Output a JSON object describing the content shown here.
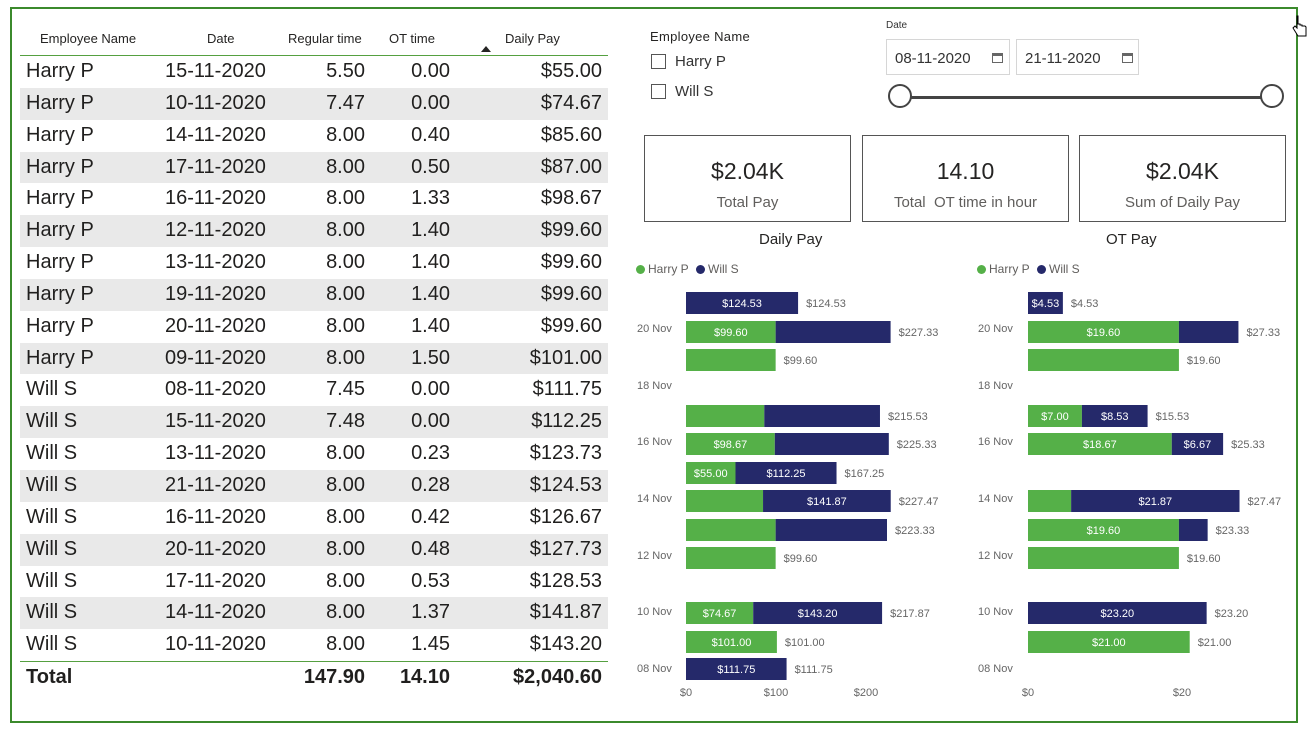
{
  "colors": {
    "harry": "#55b048",
    "will": "#25296a",
    "frame": "#3b8a2c"
  },
  "table": {
    "headers": [
      "Employee Name",
      "Date",
      "Regular time",
      "OT time",
      "Daily Pay"
    ],
    "rows": [
      [
        "Harry P",
        "15-11-2020",
        "5.50",
        "0.00",
        "$55.00"
      ],
      [
        "Harry P",
        "10-11-2020",
        "7.47",
        "0.00",
        "$74.67"
      ],
      [
        "Harry P",
        "14-11-2020",
        "8.00",
        "0.40",
        "$85.60"
      ],
      [
        "Harry P",
        "17-11-2020",
        "8.00",
        "0.50",
        "$87.00"
      ],
      [
        "Harry P",
        "16-11-2020",
        "8.00",
        "1.33",
        "$98.67"
      ],
      [
        "Harry P",
        "12-11-2020",
        "8.00",
        "1.40",
        "$99.60"
      ],
      [
        "Harry P",
        "13-11-2020",
        "8.00",
        "1.40",
        "$99.60"
      ],
      [
        "Harry P",
        "19-11-2020",
        "8.00",
        "1.40",
        "$99.60"
      ],
      [
        "Harry P",
        "20-11-2020",
        "8.00",
        "1.40",
        "$99.60"
      ],
      [
        "Harry P",
        "09-11-2020",
        "8.00",
        "1.50",
        "$101.00"
      ],
      [
        "Will S",
        "08-11-2020",
        "7.45",
        "0.00",
        "$111.75"
      ],
      [
        "Will S",
        "15-11-2020",
        "7.48",
        "0.00",
        "$112.25"
      ],
      [
        "Will S",
        "13-11-2020",
        "8.00",
        "0.23",
        "$123.73"
      ],
      [
        "Will S",
        "21-11-2020",
        "8.00",
        "0.28",
        "$124.53"
      ],
      [
        "Will S",
        "16-11-2020",
        "8.00",
        "0.42",
        "$126.67"
      ],
      [
        "Will S",
        "20-11-2020",
        "8.00",
        "0.48",
        "$127.73"
      ],
      [
        "Will S",
        "17-11-2020",
        "8.00",
        "0.53",
        "$128.53"
      ],
      [
        "Will S",
        "14-11-2020",
        "8.00",
        "1.37",
        "$141.87"
      ],
      [
        "Will S",
        "10-11-2020",
        "8.00",
        "1.45",
        "$143.20"
      ]
    ],
    "total": {
      "label": "Total",
      "regular": "147.90",
      "ot": "14.10",
      "pay": "$2,040.60"
    }
  },
  "employee_slicer": {
    "title": "Employee Name",
    "options": [
      "Harry P",
      "Will S"
    ]
  },
  "date_slicer": {
    "title": "Date",
    "start": "08-11-2020",
    "end": "21-11-2020"
  },
  "cards": [
    {
      "value": "$2.04K",
      "label": "Total Pay"
    },
    {
      "value": "14.10",
      "label": "Total  OT time in hour"
    },
    {
      "value": "$2.04K",
      "label": "Sum of Daily Pay"
    }
  ],
  "legend": [
    "Harry P",
    "Will S"
  ],
  "chart_data": [
    {
      "type": "bar",
      "orientation": "horizontal-stacked",
      "title": "Daily Pay",
      "series": [
        {
          "name": "Harry P"
        },
        {
          "name": "Will S"
        }
      ],
      "tick_labels": [
        "$0",
        "$100",
        "$200"
      ],
      "xlim": [
        0,
        250
      ],
      "category_labels": [
        "20 Nov",
        "18 Nov",
        "16 Nov",
        "14 Nov",
        "12 Nov",
        "10 Nov",
        "08 Nov"
      ],
      "bars": [
        {
          "date": "21 Nov",
          "harry": 0,
          "will": 124.53,
          "harry_label": "",
          "will_label": "$124.53",
          "total_label": "$124.53"
        },
        {
          "date": "20 Nov",
          "harry": 99.6,
          "will": 127.73,
          "harry_label": "$99.60",
          "will_label": "",
          "total_label": "$227.33"
        },
        {
          "date": "19 Nov",
          "harry": 99.6,
          "will": 0,
          "harry_label": "",
          "will_label": "",
          "total_label": "$99.60"
        },
        {
          "date": "17 Nov",
          "harry": 87.0,
          "will": 128.53,
          "harry_label": "",
          "will_label": "",
          "total_label": "$215.53"
        },
        {
          "date": "16 Nov",
          "harry": 98.67,
          "will": 126.67,
          "harry_label": "$98.67",
          "will_label": "",
          "total_label": "$225.33"
        },
        {
          "date": "15 Nov",
          "harry": 55.0,
          "will": 112.25,
          "harry_label": "$55.00",
          "will_label": "$112.25",
          "total_label": "$167.25"
        },
        {
          "date": "14 Nov",
          "harry": 85.6,
          "will": 141.87,
          "harry_label": "",
          "will_label": "$141.87",
          "total_label": "$227.47"
        },
        {
          "date": "13 Nov",
          "harry": 99.6,
          "will": 123.73,
          "harry_label": "",
          "will_label": "",
          "total_label": "$223.33"
        },
        {
          "date": "12 Nov",
          "harry": 99.6,
          "will": 0,
          "harry_label": "",
          "will_label": "",
          "total_label": "$99.60"
        },
        {
          "date": "10 Nov",
          "harry": 74.67,
          "will": 143.2,
          "harry_label": "$74.67",
          "will_label": "$143.20",
          "total_label": "$217.87"
        },
        {
          "date": "09 Nov",
          "harry": 101.0,
          "will": 0,
          "harry_label": "$101.00",
          "will_label": "",
          "total_label": "$101.00"
        },
        {
          "date": "08 Nov",
          "harry": 0,
          "will": 111.75,
          "harry_label": "",
          "will_label": "$111.75",
          "total_label": "$111.75"
        }
      ]
    },
    {
      "type": "bar",
      "orientation": "horizontal-stacked",
      "title": "OT Pay",
      "series": [
        {
          "name": "Harry P"
        },
        {
          "name": "Will S"
        }
      ],
      "tick_labels": [
        "$0",
        "$20"
      ],
      "xlim": [
        0,
        30
      ],
      "category_labels": [
        "20 Nov",
        "18 Nov",
        "16 Nov",
        "14 Nov",
        "12 Nov",
        "10 Nov",
        "08 Nov"
      ],
      "bars": [
        {
          "date": "21 Nov",
          "harry": 0,
          "will": 4.53,
          "harry_label": "",
          "will_label": "$4.53",
          "total_label": "$4.53"
        },
        {
          "date": "20 Nov",
          "harry": 19.6,
          "will": 7.73,
          "harry_label": "$19.60",
          "will_label": "",
          "total_label": "$27.33"
        },
        {
          "date": "19 Nov",
          "harry": 19.6,
          "will": 0,
          "harry_label": "",
          "will_label": "",
          "total_label": "$19.60"
        },
        {
          "date": "17 Nov",
          "harry": 7.0,
          "will": 8.53,
          "harry_label": "$7.00",
          "will_label": "$8.53",
          "total_label": "$15.53"
        },
        {
          "date": "16 Nov",
          "harry": 18.67,
          "will": 6.67,
          "harry_label": "$18.67",
          "will_label": "$6.67",
          "total_label": "$25.33"
        },
        {
          "date": "15 Nov",
          "harry": 0,
          "will": 0,
          "harry_label": "",
          "will_label": "",
          "total_label": ""
        },
        {
          "date": "14 Nov",
          "harry": 5.6,
          "will": 21.87,
          "harry_label": "",
          "will_label": "$21.87",
          "total_label": "$27.47"
        },
        {
          "date": "13 Nov",
          "harry": 19.6,
          "will": 3.73,
          "harry_label": "$19.60",
          "will_label": "",
          "total_label": "$23.33"
        },
        {
          "date": "12 Nov",
          "harry": 19.6,
          "will": 0,
          "harry_label": "",
          "will_label": "",
          "total_label": "$19.60"
        },
        {
          "date": "10 Nov",
          "harry": 0,
          "will": 23.2,
          "harry_label": "",
          "will_label": "$23.20",
          "total_label": "$23.20"
        },
        {
          "date": "09 Nov",
          "harry": 21.0,
          "will": 0,
          "harry_label": "$21.00",
          "will_label": "",
          "total_label": "$21.00"
        },
        {
          "date": "08 Nov",
          "harry": 0,
          "will": 0,
          "harry_label": "",
          "will_label": "",
          "total_label": ""
        }
      ]
    }
  ]
}
